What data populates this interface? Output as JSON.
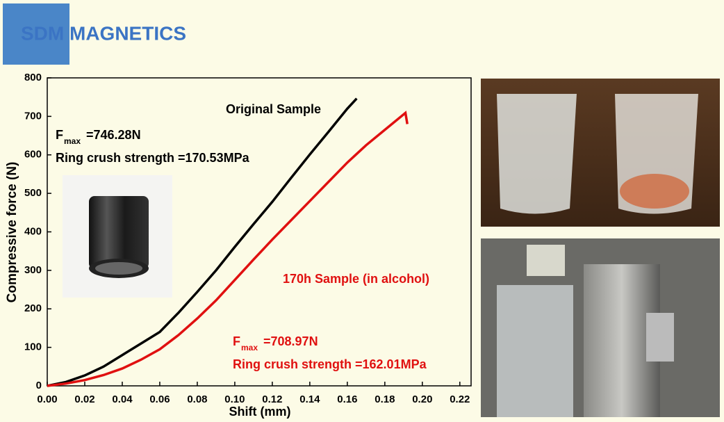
{
  "logo": "SDM MAGNETICS",
  "chart_data": {
    "type": "line",
    "xlabel": "Shift (mm)",
    "ylabel": "Compressive force (N)",
    "xlim": [
      0,
      0.226
    ],
    "ylim": [
      0,
      800
    ],
    "xticks": [
      {
        "value": 0,
        "label": "0.00"
      },
      {
        "value": 0.02,
        "label": "0.02"
      },
      {
        "value": 0.04,
        "label": "0.04"
      },
      {
        "value": 0.06,
        "label": "0.06"
      },
      {
        "value": 0.08,
        "label": "0.08"
      },
      {
        "value": 0.1,
        "label": "0.10"
      },
      {
        "value": 0.12,
        "label": "0.12"
      },
      {
        "value": 0.14,
        "label": "0.14"
      },
      {
        "value": 0.16,
        "label": "0.16"
      },
      {
        "value": 0.18,
        "label": "0.18"
      },
      {
        "value": 0.2,
        "label": "0.20"
      },
      {
        "value": 0.22,
        "label": "0.22"
      }
    ],
    "yticks": [
      0,
      100,
      200,
      300,
      400,
      500,
      600,
      700,
      800
    ],
    "series": [
      {
        "name": "Original Sample",
        "color": "#000000",
        "x": [
          0,
          0.01,
          0.02,
          0.03,
          0.04,
          0.05,
          0.06,
          0.07,
          0.08,
          0.09,
          0.1,
          0.11,
          0.12,
          0.13,
          0.14,
          0.15,
          0.16,
          0.165
        ],
        "values": [
          0,
          10,
          27,
          50,
          80,
          110,
          140,
          190,
          244,
          300,
          361,
          420,
          478,
          540,
          601,
          660,
          720,
          746.28
        ]
      },
      {
        "name": "170h Sample (in alcohol)",
        "color": "#e01010",
        "x": [
          0,
          0.01,
          0.02,
          0.03,
          0.04,
          0.05,
          0.06,
          0.07,
          0.08,
          0.09,
          0.1,
          0.11,
          0.12,
          0.13,
          0.14,
          0.15,
          0.16,
          0.17,
          0.18,
          0.191,
          0.192
        ],
        "values": [
          0,
          6,
          15,
          28,
          45,
          68,
          95,
          132,
          175,
          222,
          275,
          328,
          380,
          430,
          480,
          530,
          580,
          625,
          665,
          708.97,
          680
        ]
      }
    ],
    "annotations": [
      {
        "F": "F",
        "sub": "max",
        "rest": "=746.28N",
        "strength": "Ring crush strength =170.53MPa"
      },
      {
        "F": "F",
        "sub": "max",
        "rest": "=708.97N",
        "strength": "Ring crush strength =162.01MPa"
      }
    ]
  }
}
